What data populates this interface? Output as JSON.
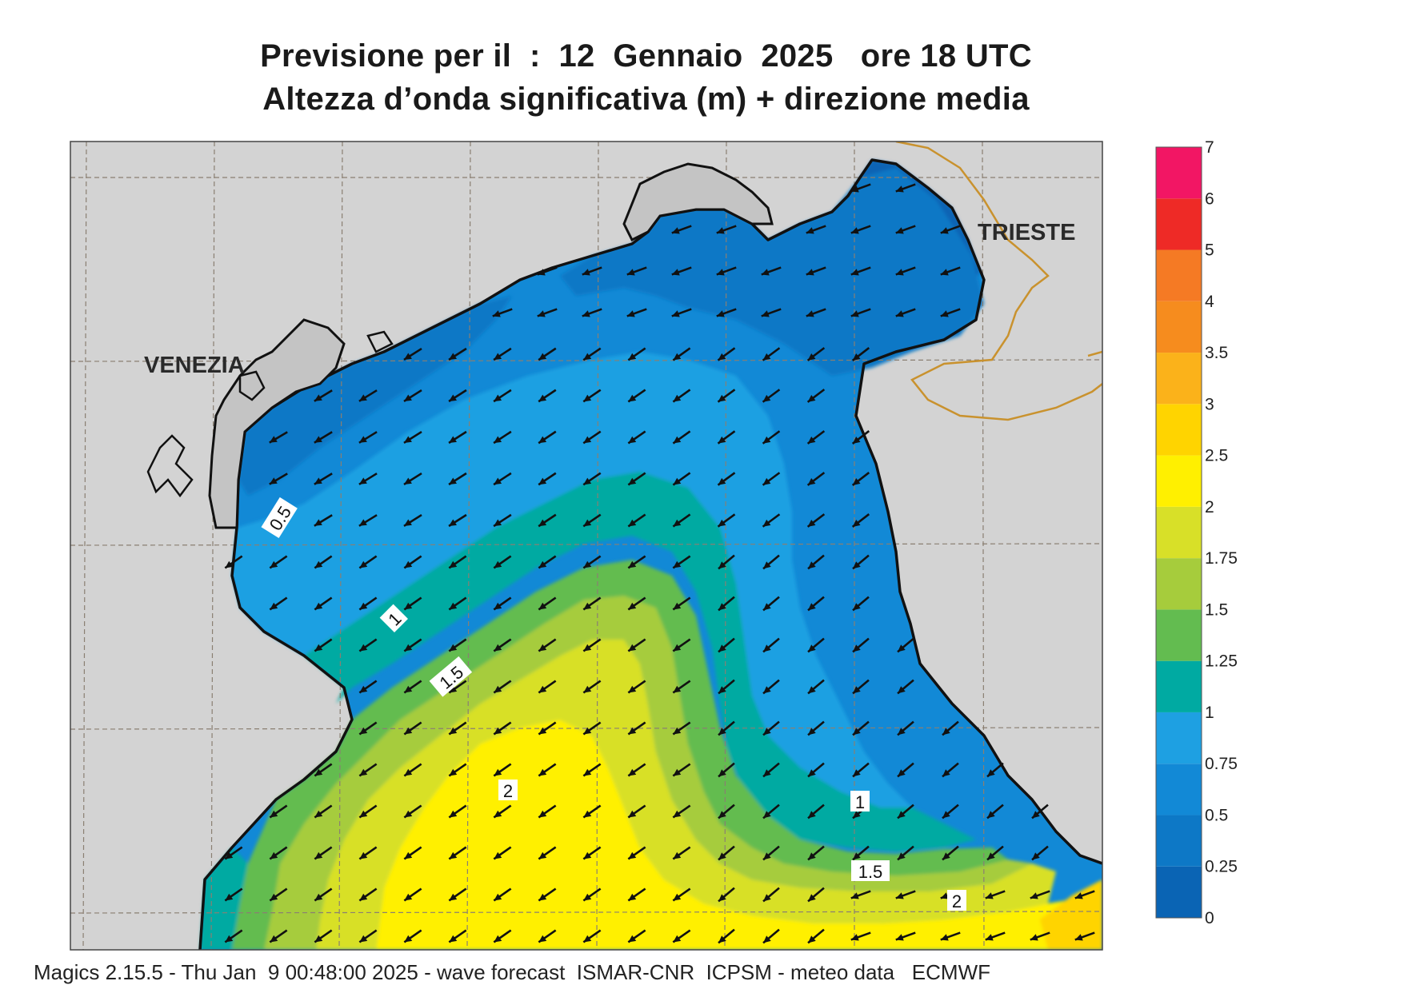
{
  "title": {
    "line1": "Previsione per il  :  12  Gennaio  2025   ore 18 UTC",
    "line2": "Altezza d’onda significativa (m) + direzione media"
  },
  "map": {
    "labels": {
      "venezia": "VENEZIA",
      "trieste": "TRIESTE"
    },
    "contour_labels": [
      "0.5",
      "1",
      "1.5",
      "2",
      "1",
      "1.5",
      "2"
    ],
    "colors": {
      "land": "#d3d3d3",
      "coast": "#111111",
      "border": "#c9922e",
      "grid": "#8a7f72",
      "arrow": "#111111"
    }
  },
  "legend": {
    "unit": "m",
    "ticks": [
      "0",
      "0.25",
      "0.5",
      "0.75",
      "1",
      "1.25",
      "1.5",
      "1.75",
      "2",
      "2.5",
      "3",
      "3.5",
      "4",
      "5",
      "6",
      "7"
    ],
    "colors": [
      "#0a64b4",
      "#0d78c6",
      "#1289d6",
      "#1ea0e2",
      "#00aaa2",
      "#63bc50",
      "#a6cc3c",
      "#d8e028",
      "#fff000",
      "#ffd400",
      "#fbb21a",
      "#f68c1e",
      "#f57a24",
      "#ee2a26",
      "#f21664"
    ]
  },
  "footer": "Magics 2.15.5 - Thu Jan  9 00:48:00 2025 - wave forecast  ISMAR-CNR  ICPSM - meteo data   ECMWF"
}
